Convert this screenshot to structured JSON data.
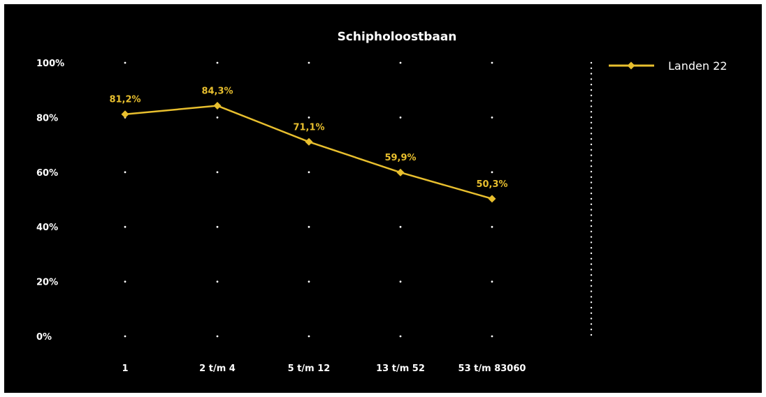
{
  "chart_data": {
    "type": "line",
    "title": "Schipholoostbaan",
    "xlabel": "",
    "ylabel": "",
    "categories": [
      "1",
      "2 t/m 4",
      "5 t/m 12",
      "13 t/m 52",
      "53 t/m 83060"
    ],
    "series": [
      {
        "name": "Landen 22",
        "values": [
          81.2,
          84.3,
          71.1,
          59.9,
          50.3
        ],
        "labels": [
          "81,2%",
          "84,3%",
          "71,1%",
          "59,9%",
          "50,3%"
        ],
        "color": "#e8bf2e",
        "marker": "diamond"
      }
    ],
    "ylim": [
      0,
      100
    ],
    "yticks": [
      0,
      20,
      40,
      60,
      80,
      100
    ],
    "ytick_labels": [
      "0%",
      "20%",
      "40%",
      "60%",
      "80%",
      "100%"
    ],
    "grid": "dotted",
    "legend_position": "top-right",
    "background": "#000000",
    "text_color": "#ffffff"
  }
}
